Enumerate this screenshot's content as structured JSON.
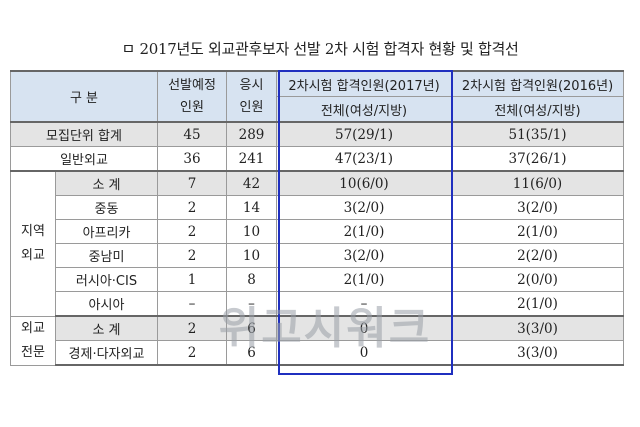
{
  "title": "ㅁ 2017년도 외교관후보자 선발 2차 시험 합격자 현황 및 합격선",
  "header": {
    "category": "구 분",
    "selection_plan": "선발예정\n인원",
    "applicants": "응시\n인원",
    "pass_2017_title": "2차시험 합격인원(2017년)",
    "pass_2017_sub": "전체(여성/지방)",
    "pass_2016_title": "2차시험 합격인원(2016년)",
    "pass_2016_sub": "전체(여성/지방)"
  },
  "rows": [
    {
      "label": "모집단위 합계",
      "plan": "45",
      "applicants": "289",
      "p2017": "57(29/1)",
      "p2016": "51(35/1)"
    },
    {
      "label": "일반외교",
      "plan": "36",
      "applicants": "241",
      "p2017": "47(23/1)",
      "p2016": "37(26/1)"
    },
    {
      "label": "소 계",
      "plan": "7",
      "applicants": "42",
      "p2017": "10(6/0)",
      "p2016": "11(6/0)"
    },
    {
      "label": "중동",
      "plan": "2",
      "applicants": "14",
      "p2017": "3(2/0)",
      "p2016": "3(2/0)"
    },
    {
      "label": "아프리카",
      "plan": "2",
      "applicants": "10",
      "p2017": "2(1/0)",
      "p2016": "2(1/0)"
    },
    {
      "label": "중남미",
      "plan": "2",
      "applicants": "10",
      "p2017": "3(2/0)",
      "p2016": "2(2/0)"
    },
    {
      "label": "러시아·CIS",
      "plan": "1",
      "applicants": "8",
      "p2017": "2(1/0)",
      "p2016": "2(0/0)"
    },
    {
      "label": "아시아",
      "plan": "–",
      "applicants": "–",
      "p2017": "–",
      "p2016": "2(1/0)"
    },
    {
      "label": "소 계",
      "plan": "2",
      "applicants": "6",
      "p2017": "0",
      "p2016": "3(3/0)"
    },
    {
      "label": "경제·다자외교",
      "plan": "2",
      "applicants": "6",
      "p2017": "0",
      "p2016": "3(3/0)"
    }
  ],
  "groups": {
    "regional": "지역\n외교",
    "specialist": "외교\n전문"
  },
  "watermark": "위고시워크"
}
